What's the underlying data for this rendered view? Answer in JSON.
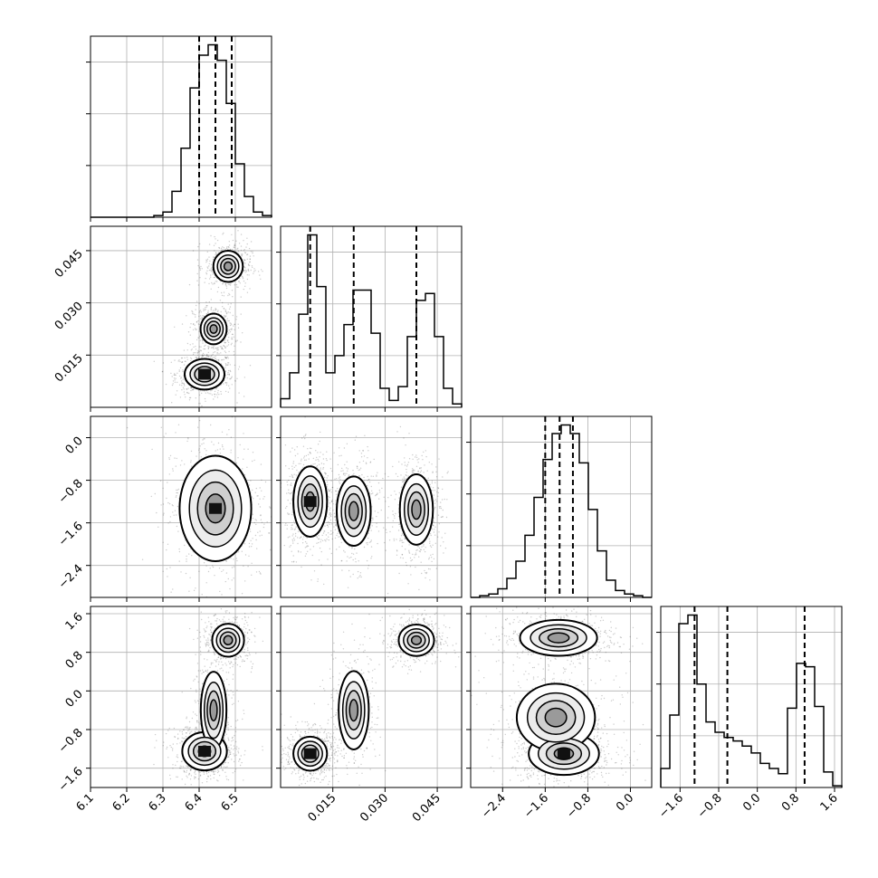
{
  "chart_data": {
    "type": "corner",
    "title": "",
    "grid": true,
    "quantile_lines": "dashed",
    "variables": [
      {
        "label": "",
        "range": [
          6.1,
          6.6
        ],
        "ticks": [
          6.1,
          6.2,
          6.3,
          6.4,
          6.5
        ],
        "tick_labels": [
          "6.1",
          "6.2",
          "6.3",
          "6.4",
          "6.5"
        ]
      },
      {
        "label": "",
        "range": [
          0.0,
          0.052
        ],
        "ticks": [
          0.015,
          0.03,
          0.045
        ],
        "tick_labels": [
          "0.015",
          "0.030",
          "0.045"
        ]
      },
      {
        "label": "",
        "range": [
          -3.0,
          0.4
        ],
        "ticks": [
          -2.4,
          -1.6,
          -0.8,
          0.0
        ],
        "tick_labels": [
          "−2.4",
          "−1.6",
          "−0.8",
          "0.0"
        ]
      },
      {
        "label": "",
        "range": [
          -2.0,
          1.75
        ],
        "ticks": [
          -1.6,
          -0.8,
          0.0,
          0.8,
          1.6
        ],
        "tick_labels": [
          "−1.6",
          "−0.8",
          "0.0",
          "0.8",
          "1.6"
        ]
      }
    ],
    "histograms": [
      {
        "variable": 0,
        "bins": [
          6.1,
          6.125,
          6.15,
          6.175,
          6.2,
          6.225,
          6.25,
          6.275,
          6.3,
          6.325,
          6.35,
          6.375,
          6.4,
          6.425,
          6.45,
          6.475,
          6.5,
          6.525,
          6.55,
          6.575,
          6.6
        ],
        "counts": [
          0,
          0,
          0,
          0,
          0,
          0,
          0,
          0.01,
          0.03,
          0.15,
          0.4,
          0.75,
          0.94,
          1.0,
          0.91,
          0.66,
          0.31,
          0.12,
          0.03,
          0.01
        ],
        "quantiles": [
          6.4,
          6.445,
          6.49
        ]
      },
      {
        "variable": 1,
        "bins": [
          0.0,
          0.0026,
          0.0052,
          0.0078,
          0.0104,
          0.013,
          0.0156,
          0.0182,
          0.0208,
          0.0234,
          0.026,
          0.0286,
          0.0312,
          0.0338,
          0.0364,
          0.039,
          0.0416,
          0.0442,
          0.0468,
          0.0494,
          0.052
        ],
        "counts": [
          0.05,
          0.2,
          0.54,
          1.0,
          0.7,
          0.2,
          0.3,
          0.48,
          0.68,
          0.68,
          0.43,
          0.11,
          0.04,
          0.12,
          0.41,
          0.62,
          0.66,
          0.41,
          0.11,
          0.02
        ],
        "quantiles": [
          0.0085,
          0.021,
          0.039
        ]
      },
      {
        "variable": 2,
        "bins": [
          -3.0,
          -2.83,
          -2.66,
          -2.49,
          -2.32,
          -2.15,
          -1.98,
          -1.81,
          -1.64,
          -1.47,
          -1.3,
          -1.13,
          -0.96,
          -0.79,
          -0.62,
          -0.45,
          -0.28,
          -0.11,
          0.06,
          0.23,
          0.4
        ],
        "counts": [
          0,
          0.01,
          0.02,
          0.05,
          0.11,
          0.21,
          0.36,
          0.58,
          0.8,
          0.95,
          1.0,
          0.95,
          0.78,
          0.51,
          0.27,
          0.1,
          0.04,
          0.02,
          0.01,
          0
        ],
        "quantiles": [
          -1.6,
          -1.33,
          -1.08
        ]
      },
      {
        "variable": 3,
        "bins": [
          -2.0,
          -1.8125,
          -1.625,
          -1.4375,
          -1.25,
          -1.0625,
          -0.875,
          -0.6875,
          -0.5,
          -0.3125,
          -0.125,
          0.0625,
          0.25,
          0.4375,
          0.625,
          0.8125,
          1.0,
          1.1875,
          1.375,
          1.5625,
          1.75
        ],
        "counts": [
          0.11,
          0.42,
          0.95,
          1.0,
          0.6,
          0.38,
          0.32,
          0.29,
          0.27,
          0.24,
          0.2,
          0.14,
          0.11,
          0.08,
          0.46,
          0.72,
          0.7,
          0.47,
          0.09,
          0.01
        ],
        "quantiles": [
          -1.3,
          -0.62,
          0.98
        ]
      }
    ],
    "density_2d": [
      {
        "x_var": 0,
        "y_var": 1,
        "clusters": [
          {
            "x": 6.415,
            "y": 0.0095,
            "sx": 0.025,
            "sy": 0.002,
            "w": 1.0
          },
          {
            "x": 6.44,
            "y": 0.0225,
            "sx": 0.018,
            "sy": 0.0022,
            "w": 0.7
          },
          {
            "x": 6.48,
            "y": 0.0405,
            "sx": 0.02,
            "sy": 0.0022,
            "w": 0.75
          }
        ]
      },
      {
        "x_var": 0,
        "y_var": 2,
        "clusters": [
          {
            "x": 6.445,
            "y": -1.33,
            "sx": 0.045,
            "sy": 0.45,
            "w": 1.0
          }
        ]
      },
      {
        "x_var": 1,
        "y_var": 2,
        "clusters": [
          {
            "x": 0.0085,
            "y": -1.2,
            "sx": 0.0022,
            "sy": 0.3,
            "w": 1.0
          },
          {
            "x": 0.021,
            "y": -1.38,
            "sx": 0.0024,
            "sy": 0.32,
            "w": 0.75
          },
          {
            "x": 0.039,
            "y": -1.35,
            "sx": 0.0023,
            "sy": 0.32,
            "w": 0.8
          }
        ]
      },
      {
        "x_var": 0,
        "y_var": 3,
        "clusters": [
          {
            "x": 6.48,
            "y": 1.05,
            "sx": 0.022,
            "sy": 0.17,
            "w": 0.7
          },
          {
            "x": 6.415,
            "y": -1.25,
            "sx": 0.028,
            "sy": 0.18,
            "w": 1.0
          },
          {
            "x": 6.44,
            "y": -0.4,
            "sx": 0.02,
            "sy": 0.45,
            "w": 0.35
          }
        ]
      },
      {
        "x_var": 1,
        "y_var": 3,
        "clusters": [
          {
            "x": 0.0085,
            "y": -1.3,
            "sx": 0.0022,
            "sy": 0.16,
            "w": 1.0
          },
          {
            "x": 0.021,
            "y": -0.4,
            "sx": 0.0024,
            "sy": 0.45,
            "w": 0.4
          },
          {
            "x": 0.039,
            "y": 1.05,
            "sx": 0.0025,
            "sy": 0.16,
            "w": 0.75
          }
        ]
      },
      {
        "x_var": 2,
        "y_var": 3,
        "clusters": [
          {
            "x": -1.35,
            "y": 1.1,
            "sx": 0.35,
            "sy": 0.18,
            "w": 0.8
          },
          {
            "x": -1.25,
            "y": -1.3,
            "sx": 0.3,
            "sy": 0.2,
            "w": 1.0
          },
          {
            "x": -1.4,
            "y": -0.55,
            "sx": 0.4,
            "sy": 0.38,
            "w": 0.45
          }
        ]
      }
    ],
    "colors": {
      "line": "#000000",
      "grid": "#b0b0b0",
      "scatter": "#333333",
      "density_max": "#000000"
    }
  }
}
